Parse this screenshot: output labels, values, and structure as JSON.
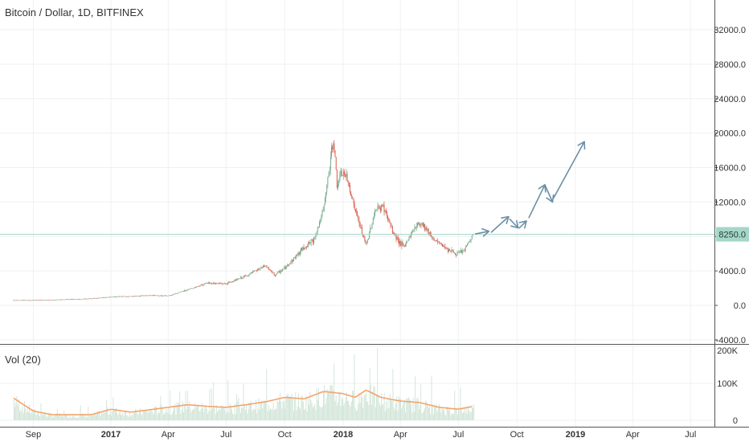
{
  "chart_data": {
    "type": "candlestick",
    "title": "Bitcoin / Dollar, 1D, BITFINEX",
    "price_axis": {
      "ticks": [
        "32000.0",
        "28000.0",
        "24000.0",
        "20000.0",
        "16000.0",
        "12000.0",
        "8000.0",
        "4000.0",
        "0.0",
        "-4000.0"
      ],
      "tick_values": [
        32000,
        28000,
        24000,
        20000,
        16000,
        12000,
        8000,
        4000,
        0,
        -4000
      ],
      "range": [
        -4500,
        35500
      ]
    },
    "current_price": {
      "label": "8250.0",
      "value": 8250
    },
    "volume_panel": {
      "title": "Vol (20)",
      "ticks": [
        "200K",
        "100K",
        "0"
      ],
      "tick_values": [
        200000,
        100000,
        0
      ]
    },
    "time_axis": {
      "labels": [
        "Sep",
        "2017",
        "Apr",
        "Jul",
        "Oct",
        "2018",
        "Apr",
        "Jul",
        "Oct",
        "2019",
        "Apr",
        "Jul"
      ],
      "dates": [
        "2016-09",
        "2017-01",
        "2017-04",
        "2017-07",
        "2017-10",
        "2018-01",
        "2018-04",
        "2018-07",
        "2018-10",
        "2019-01",
        "2019-04",
        "2019-07"
      ],
      "bold": [
        false,
        true,
        false,
        false,
        false,
        true,
        false,
        false,
        false,
        true,
        false,
        false
      ]
    },
    "price_series": [
      {
        "date": "2016-08-01",
        "value": 600
      },
      {
        "date": "2016-09-01",
        "value": 600
      },
      {
        "date": "2016-10-01",
        "value": 630
      },
      {
        "date": "2016-11-01",
        "value": 720
      },
      {
        "date": "2016-12-01",
        "value": 780
      },
      {
        "date": "2017-01-01",
        "value": 1000
      },
      {
        "date": "2017-02-01",
        "value": 1050
      },
      {
        "date": "2017-03-01",
        "value": 1150
      },
      {
        "date": "2017-04-01",
        "value": 1100
      },
      {
        "date": "2017-05-01",
        "value": 1800
      },
      {
        "date": "2017-06-01",
        "value": 2600
      },
      {
        "date": "2017-07-01",
        "value": 2500
      },
      {
        "date": "2017-08-01",
        "value": 3400
      },
      {
        "date": "2017-09-01",
        "value": 4600
      },
      {
        "date": "2017-09-15",
        "value": 3500
      },
      {
        "date": "2017-10-01",
        "value": 4300
      },
      {
        "date": "2017-10-20",
        "value": 5800
      },
      {
        "date": "2017-11-01",
        "value": 6800
      },
      {
        "date": "2017-11-15",
        "value": 7500
      },
      {
        "date": "2017-12-01",
        "value": 11000
      },
      {
        "date": "2017-12-17",
        "value": 19500
      },
      {
        "date": "2017-12-22",
        "value": 14000
      },
      {
        "date": "2018-01-01",
        "value": 15500
      },
      {
        "date": "2018-01-10",
        "value": 14000
      },
      {
        "date": "2018-01-20",
        "value": 11000
      },
      {
        "date": "2018-02-06",
        "value": 6900
      },
      {
        "date": "2018-02-20",
        "value": 11000
      },
      {
        "date": "2018-03-05",
        "value": 11500
      },
      {
        "date": "2018-03-20",
        "value": 8500
      },
      {
        "date": "2018-04-06",
        "value": 6700
      },
      {
        "date": "2018-04-25",
        "value": 9300
      },
      {
        "date": "2018-05-05",
        "value": 9600
      },
      {
        "date": "2018-05-25",
        "value": 7500
      },
      {
        "date": "2018-06-10",
        "value": 6800
      },
      {
        "date": "2018-06-28",
        "value": 5900
      },
      {
        "date": "2018-07-10",
        "value": 6400
      },
      {
        "date": "2018-07-25",
        "value": 8250
      }
    ],
    "volume_series": [
      {
        "date": "2016-08-01",
        "value": 60000
      },
      {
        "date": "2016-09-01",
        "value": 25000
      },
      {
        "date": "2016-10-01",
        "value": 15000
      },
      {
        "date": "2016-12-01",
        "value": 15000
      },
      {
        "date": "2017-01-01",
        "value": 30000
      },
      {
        "date": "2017-02-01",
        "value": 22000
      },
      {
        "date": "2017-03-01",
        "value": 28000
      },
      {
        "date": "2017-04-01",
        "value": 35000
      },
      {
        "date": "2017-05-01",
        "value": 42000
      },
      {
        "date": "2017-06-01",
        "value": 38000
      },
      {
        "date": "2017-07-01",
        "value": 35000
      },
      {
        "date": "2017-08-01",
        "value": 42000
      },
      {
        "date": "2017-09-01",
        "value": 50000
      },
      {
        "date": "2017-10-01",
        "value": 62000
      },
      {
        "date": "2017-11-01",
        "value": 58000
      },
      {
        "date": "2017-12-01",
        "value": 78000
      },
      {
        "date": "2018-01-01",
        "value": 72000
      },
      {
        "date": "2018-01-20",
        "value": 62000
      },
      {
        "date": "2018-02-06",
        "value": 82000
      },
      {
        "date": "2018-03-01",
        "value": 62000
      },
      {
        "date": "2018-04-01",
        "value": 52000
      },
      {
        "date": "2018-05-01",
        "value": 48000
      },
      {
        "date": "2018-06-01",
        "value": 35000
      },
      {
        "date": "2018-07-01",
        "value": 30000
      },
      {
        "date": "2018-07-25",
        "value": 38000
      }
    ],
    "projection_arrows": [
      {
        "from": {
          "date": "2018-07-28",
          "value": 8300
        },
        "to": {
          "date": "2018-08-18",
          "value": 8600
        }
      },
      {
        "from": {
          "date": "2018-08-22",
          "value": 8500
        },
        "to": {
          "date": "2018-09-18",
          "value": 10300
        }
      },
      {
        "from": {
          "date": "2018-09-20",
          "value": 10000
        },
        "to": {
          "date": "2018-10-03",
          "value": 9000
        }
      },
      {
        "from": {
          "date": "2018-10-05",
          "value": 9000
        },
        "to": {
          "date": "2018-10-16",
          "value": 9800
        }
      },
      {
        "from": {
          "date": "2018-10-20",
          "value": 10200
        },
        "to": {
          "date": "2018-11-14",
          "value": 14000
        }
      },
      {
        "from": {
          "date": "2018-11-14",
          "value": 14000
        },
        "to": {
          "date": "2018-11-26",
          "value": 12000
        }
      },
      {
        "from": {
          "date": "2018-11-28",
          "value": 12500
        },
        "to": {
          "date": "2019-01-15",
          "value": 19000
        }
      }
    ],
    "colors": {
      "up": "#6ba583",
      "down": "#d75442",
      "volume_bar": "#cfe3d6",
      "volume_ma": "#f4a46b",
      "price_line": "#a5d6c8",
      "arrows": "#6b8fa5",
      "grid": "#eef1f3",
      "axis_text": "#333333"
    },
    "grid": true
  }
}
